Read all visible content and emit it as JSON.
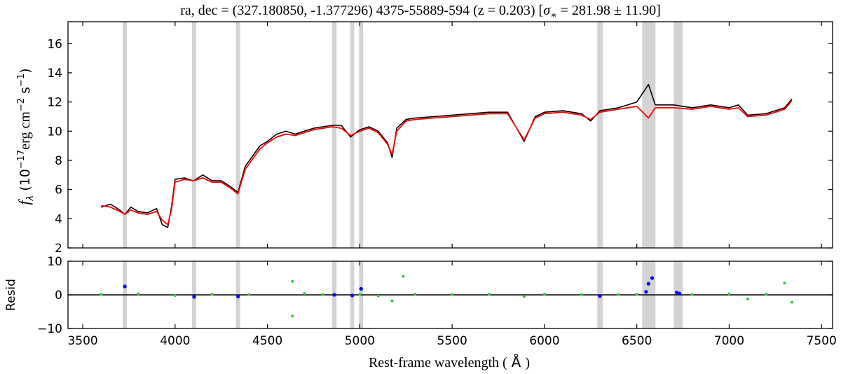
{
  "chart_data": [
    {
      "type": "line",
      "panel": "spectrum",
      "title": "ra, dec = (327.180850, -1.377296) 4375-55889-594 (z = 0.203) [σ* = 281.98 ± 11.90]",
      "title_parts": {
        "main": "ra, dec = (327.180850, -1.377296) 4375-55889-594 (z = 0.203) [",
        "sigma": "σ",
        "sub": "∗",
        "rest": " = 281.98 ± 11.90]"
      },
      "ylabel_parts": {
        "f": "f",
        "sub": "λ",
        "open": " (10",
        "exp1": "−17",
        "erg": "erg cm",
        "exp2": "−2",
        "s": " s",
        "exp3": "−1",
        "close": ")"
      },
      "xlim": [
        3420,
        7560
      ],
      "ylim": [
        2,
        17.5
      ],
      "yticks": [
        2,
        4,
        6,
        8,
        10,
        12,
        14,
        16
      ],
      "grid": false,
      "masked_regions": [
        [
          3717,
          3739
        ],
        [
          4092,
          4114
        ],
        [
          4330,
          4352
        ],
        [
          4850,
          4874
        ],
        [
          4948,
          4970
        ],
        [
          4996,
          5018
        ],
        [
          6286,
          6316
        ],
        [
          6529,
          6601
        ],
        [
          6700,
          6748
        ]
      ],
      "series": [
        {
          "color": "#000000",
          "x": [
            3600,
            3650,
            3700,
            3728,
            3760,
            3800,
            3850,
            3900,
            3930,
            3960,
            3980,
            4000,
            4050,
            4100,
            4150,
            4200,
            4250,
            4300,
            4340,
            4380,
            4420,
            4460,
            4500,
            4550,
            4600,
            4650,
            4700,
            4750,
            4800,
            4850,
            4900,
            4950,
            5000,
            5050,
            5100,
            5150,
            5175,
            5200,
            5250,
            5300,
            5400,
            5500,
            5600,
            5700,
            5800,
            5890,
            5950,
            6000,
            6100,
            6200,
            6250,
            6300,
            6400,
            6500,
            6563,
            6600,
            6700,
            6800,
            6900,
            7000,
            7050,
            7100,
            7200,
            7300,
            7340
          ],
          "values": [
            4.8,
            5.0,
            4.6,
            4.3,
            4.8,
            4.5,
            4.4,
            4.7,
            3.6,
            3.4,
            4.8,
            6.7,
            6.8,
            6.6,
            7.0,
            6.6,
            6.6,
            6.2,
            5.8,
            7.6,
            8.3,
            9.0,
            9.3,
            9.8,
            10.0,
            9.8,
            10.0,
            10.2,
            10.3,
            10.4,
            10.4,
            9.6,
            10.1,
            10.3,
            10.0,
            9.2,
            8.2,
            10.2,
            10.8,
            10.9,
            11.0,
            11.1,
            11.2,
            11.3,
            11.3,
            9.3,
            11.0,
            11.3,
            11.4,
            11.2,
            10.7,
            11.4,
            11.6,
            12.0,
            13.2,
            11.8,
            11.8,
            11.6,
            11.8,
            11.6,
            11.8,
            11.1,
            11.2,
            11.6,
            12.2
          ]
        },
        {
          "color": "#ff0000",
          "x": [
            3600,
            3650,
            3700,
            3728,
            3760,
            3800,
            3850,
            3900,
            3930,
            3960,
            3980,
            4000,
            4050,
            4100,
            4150,
            4200,
            4250,
            4300,
            4340,
            4380,
            4420,
            4460,
            4500,
            4550,
            4600,
            4650,
            4700,
            4750,
            4800,
            4850,
            4900,
            4950,
            5000,
            5050,
            5100,
            5150,
            5175,
            5200,
            5250,
            5300,
            5400,
            5500,
            5600,
            5700,
            5800,
            5890,
            5950,
            6000,
            6100,
            6200,
            6250,
            6300,
            6400,
            6500,
            6563,
            6600,
            6700,
            6800,
            6900,
            7000,
            7050,
            7100,
            7200,
            7300,
            7340
          ],
          "values": [
            4.9,
            4.8,
            4.5,
            4.3,
            4.6,
            4.4,
            4.3,
            4.5,
            3.9,
            3.6,
            4.6,
            6.5,
            6.7,
            6.6,
            6.8,
            6.5,
            6.5,
            6.1,
            5.7,
            7.4,
            8.1,
            8.8,
            9.2,
            9.6,
            9.8,
            9.7,
            9.9,
            10.1,
            10.2,
            10.3,
            10.2,
            9.7,
            10.0,
            10.2,
            9.9,
            9.1,
            8.4,
            10.0,
            10.7,
            10.8,
            10.9,
            11.0,
            11.1,
            11.2,
            11.2,
            9.4,
            10.9,
            11.2,
            11.3,
            11.1,
            10.8,
            11.3,
            11.5,
            11.7,
            10.9,
            11.6,
            11.6,
            11.5,
            11.7,
            11.5,
            11.6,
            11.0,
            11.1,
            11.5,
            12.1
          ]
        }
      ]
    },
    {
      "type": "scatter",
      "panel": "residuals",
      "xlabel_parts": {
        "main": "Rest-frame wavelength (",
        "unit": "Å",
        "close": ")"
      },
      "ylabel": "Resid",
      "xlim": [
        3420,
        7560
      ],
      "ylim": [
        -10,
        10
      ],
      "xticks": [
        3500,
        4000,
        4500,
        5000,
        5500,
        6000,
        6500,
        7000,
        7500
      ],
      "yticks": [
        -10,
        0,
        10
      ],
      "zero_line": true,
      "masked_regions": [
        [
          3717,
          3739
        ],
        [
          4092,
          4114
        ],
        [
          4330,
          4352
        ],
        [
          4850,
          4874
        ],
        [
          4948,
          4970
        ],
        [
          4996,
          5018
        ],
        [
          6286,
          6316
        ],
        [
          6529,
          6601
        ],
        [
          6700,
          6748
        ]
      ],
      "series": [
        {
          "color": "#33cc33",
          "x": [
            3600,
            3800,
            4000,
            4200,
            4400,
            4635,
            4635,
            4700,
            4800,
            5000,
            5100,
            5175,
            5235,
            5300,
            5500,
            5700,
            5890,
            6000,
            6200,
            6400,
            6500,
            6800,
            7000,
            7100,
            7200,
            7300,
            7340
          ],
          "values": [
            0.2,
            0.3,
            -0.2,
            0.2,
            0.1,
            4.0,
            -6.3,
            0.4,
            0.1,
            0.2,
            -0.3,
            -1.8,
            5.5,
            0.2,
            0.1,
            0.2,
            -0.5,
            0.2,
            0.1,
            0.1,
            0.2,
            0.1,
            0.3,
            -1.2,
            0.2,
            3.5,
            -2.2
          ]
        },
        {
          "color": "#0000ff",
          "x": [
            3728,
            4103,
            4341,
            4862,
            4959,
            5007,
            6300,
            6550,
            6563,
            6583,
            6716,
            6731
          ],
          "values": [
            2.5,
            -0.6,
            -0.5,
            0.0,
            -0.2,
            1.8,
            -0.4,
            0.9,
            3.3,
            5.0,
            0.7,
            0.4
          ]
        }
      ]
    }
  ]
}
